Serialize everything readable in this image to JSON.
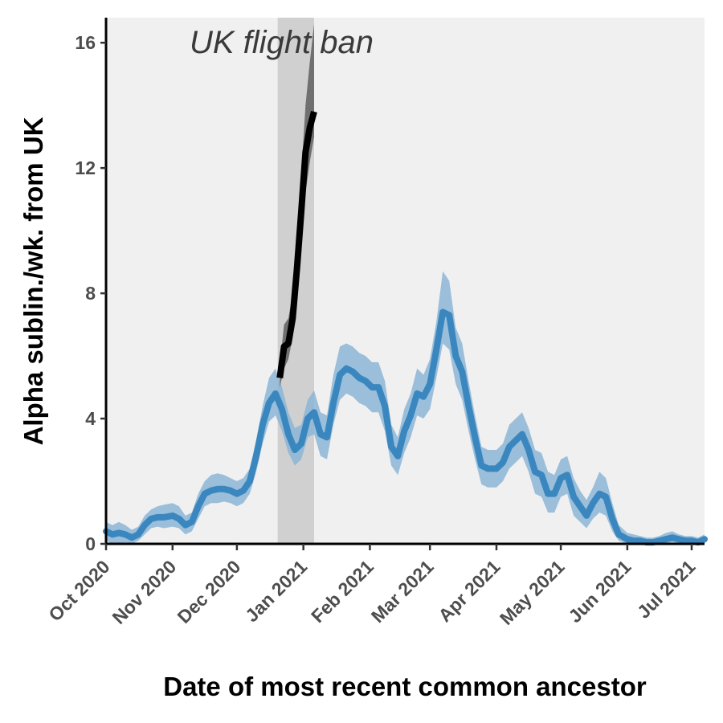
{
  "chart_data": {
    "type": "line",
    "title": "",
    "xlabel": "Date of most recent common ancestor",
    "ylabel": "Alpha sublin./wk. from UK",
    "x_start": "2020-10-01",
    "x_end": "2021-07-07",
    "ylim": [
      0,
      16.8
    ],
    "yticks": [
      0,
      4,
      8,
      12,
      16
    ],
    "ytick_labels": [
      "0",
      "4",
      "8",
      "12",
      "16"
    ],
    "xticks": [
      "2020-10-01",
      "2020-11-01",
      "2020-12-01",
      "2021-01-01",
      "2021-02-01",
      "2021-03-01",
      "2021-04-01",
      "2021-05-01",
      "2021-06-01",
      "2021-07-01"
    ],
    "xtick_labels": [
      "Oct 2020",
      "Nov 2020",
      "Dec 2020",
      "Jan 2021",
      "Feb 2021",
      "Mar 2021",
      "Apr 2021",
      "May 2021",
      "Jun 2021",
      "Jul 2021"
    ],
    "annotation": {
      "text": "UK flight ban",
      "x_start": "2020-12-20",
      "x_end": "2021-01-06"
    },
    "grid": false,
    "colors": {
      "panel": "#f0f0f0",
      "band": "#d0d0d0",
      "blue_line": "#3a87bf",
      "blue_ribbon": "#8cb5d6",
      "black_line": "#000000",
      "black_ribbon": "#6a6a6a"
    },
    "series": [
      {
        "color": "#3a87bf",
        "x": [
          "2020-10-01",
          "2020-10-04",
          "2020-10-07",
          "2020-10-10",
          "2020-10-13",
          "2020-10-16",
          "2020-10-19",
          "2020-10-22",
          "2020-10-25",
          "2020-10-28",
          "2020-11-01",
          "2020-11-04",
          "2020-11-07",
          "2020-11-10",
          "2020-11-13",
          "2020-11-16",
          "2020-11-19",
          "2020-11-22",
          "2020-11-25",
          "2020-11-28",
          "2020-12-01",
          "2020-12-04",
          "2020-12-07",
          "2020-12-10",
          "2020-12-13",
          "2020-12-16",
          "2020-12-19",
          "2020-12-22",
          "2020-12-25",
          "2020-12-28",
          "2020-12-31",
          "2021-01-03",
          "2021-01-06",
          "2021-01-09",
          "2021-01-12",
          "2021-01-15",
          "2021-01-18",
          "2021-01-21",
          "2021-01-24",
          "2021-01-27",
          "2021-01-30",
          "2021-02-02",
          "2021-02-05",
          "2021-02-08",
          "2021-02-11",
          "2021-02-14",
          "2021-02-17",
          "2021-02-20",
          "2021-02-23",
          "2021-02-26",
          "2021-03-01",
          "2021-03-04",
          "2021-03-07",
          "2021-03-10",
          "2021-03-13",
          "2021-03-16",
          "2021-03-19",
          "2021-03-22",
          "2021-03-25",
          "2021-03-28",
          "2021-04-01",
          "2021-04-04",
          "2021-04-07",
          "2021-04-10",
          "2021-04-13",
          "2021-04-16",
          "2021-04-19",
          "2021-04-22",
          "2021-04-25",
          "2021-04-28",
          "2021-05-01",
          "2021-05-04",
          "2021-05-07",
          "2021-05-10",
          "2021-05-13",
          "2021-05-16",
          "2021-05-19",
          "2021-05-22",
          "2021-05-25",
          "2021-05-28",
          "2021-06-01",
          "2021-06-04",
          "2021-06-07",
          "2021-06-10",
          "2021-06-13",
          "2021-06-16",
          "2021-06-19",
          "2021-06-22",
          "2021-06-25",
          "2021-06-28",
          "2021-07-01",
          "2021-07-04",
          "2021-07-07"
        ],
        "y": [
          0.4,
          0.3,
          0.35,
          0.3,
          0.2,
          0.3,
          0.6,
          0.8,
          0.85,
          0.85,
          0.9,
          0.8,
          0.6,
          0.7,
          1.2,
          1.6,
          1.7,
          1.75,
          1.75,
          1.7,
          1.6,
          1.7,
          2.0,
          2.8,
          3.8,
          4.5,
          4.8,
          4.3,
          3.5,
          3.0,
          3.2,
          4.0,
          4.2,
          3.5,
          3.4,
          4.5,
          5.4,
          5.6,
          5.5,
          5.3,
          5.2,
          5.0,
          5.0,
          4.4,
          3.1,
          2.8,
          3.6,
          4.1,
          4.8,
          4.7,
          5.1,
          6.2,
          7.4,
          7.3,
          6.0,
          5.5,
          4.4,
          3.4,
          2.5,
          2.4,
          2.4,
          2.6,
          3.1,
          3.3,
          3.5,
          3.0,
          2.3,
          2.2,
          1.6,
          1.6,
          2.1,
          2.2,
          1.5,
          1.2,
          0.9,
          1.3,
          1.6,
          1.5,
          0.8,
          0.3,
          0.15,
          0.1,
          0.1,
          0.05,
          0.05,
          0.1,
          0.15,
          0.2,
          0.15,
          0.1,
          0.1,
          0.05,
          0.15
        ],
        "lower": [
          0.1,
          0.0,
          0.0,
          0.05,
          0.0,
          0.1,
          0.3,
          0.5,
          0.55,
          0.5,
          0.55,
          0.5,
          0.3,
          0.4,
          0.8,
          1.2,
          1.3,
          1.3,
          1.35,
          1.3,
          1.2,
          1.3,
          1.6,
          2.3,
          3.2,
          3.9,
          4.1,
          3.6,
          2.9,
          2.5,
          2.7,
          3.4,
          3.5,
          2.8,
          2.7,
          3.8,
          4.6,
          4.8,
          4.7,
          4.5,
          4.4,
          4.2,
          4.2,
          3.6,
          2.5,
          2.2,
          2.9,
          3.4,
          4.1,
          4.0,
          4.3,
          5.3,
          6.4,
          6.2,
          5.1,
          4.6,
          3.6,
          2.7,
          1.9,
          1.8,
          1.8,
          2.0,
          2.4,
          2.6,
          2.8,
          2.3,
          1.6,
          1.5,
          1.0,
          1.0,
          1.5,
          1.6,
          0.9,
          0.7,
          0.5,
          0.8,
          1.0,
          0.9,
          0.4,
          0.1,
          0.0,
          0.0,
          0.0,
          0.0,
          0.0,
          0.0,
          0.02,
          0.05,
          0.02,
          0.0,
          0.0,
          0.0,
          0.02
        ],
        "upper": [
          0.7,
          0.6,
          0.7,
          0.6,
          0.45,
          0.55,
          0.9,
          1.1,
          1.2,
          1.25,
          1.3,
          1.2,
          0.9,
          1.0,
          1.6,
          2.0,
          2.2,
          2.25,
          2.2,
          2.1,
          2.0,
          2.1,
          2.4,
          3.3,
          4.4,
          5.3,
          5.6,
          5.0,
          4.2,
          3.7,
          3.8,
          4.6,
          4.9,
          4.2,
          4.1,
          5.4,
          6.3,
          6.4,
          6.3,
          6.1,
          6.0,
          5.8,
          5.8,
          5.2,
          3.8,
          3.4,
          4.3,
          4.8,
          5.6,
          5.4,
          5.9,
          7.1,
          8.7,
          8.4,
          6.9,
          6.4,
          5.2,
          4.1,
          3.1,
          3.0,
          3.0,
          3.2,
          3.8,
          4.0,
          4.2,
          3.7,
          3.0,
          2.9,
          2.3,
          2.2,
          2.7,
          2.8,
          2.1,
          1.7,
          1.4,
          1.8,
          2.3,
          2.1,
          1.3,
          0.6,
          0.35,
          0.3,
          0.25,
          0.2,
          0.2,
          0.25,
          0.35,
          0.4,
          0.3,
          0.25,
          0.25,
          0.2,
          0.3
        ]
      },
      {
        "color": "#000000",
        "x": [
          "2020-12-21",
          "2020-12-23",
          "2020-12-25",
          "2020-12-27",
          "2020-12-29",
          "2020-12-31",
          "2021-01-02",
          "2021-01-04",
          "2021-01-06"
        ],
        "y": [
          5.3,
          6.3,
          6.4,
          7.2,
          8.8,
          10.6,
          12.5,
          13.3,
          13.8
        ],
        "lower": [
          5.0,
          5.6,
          5.9,
          6.6,
          8.0,
          9.6,
          11.2,
          12.2,
          13.0
        ],
        "upper": [
          5.7,
          7.0,
          7.2,
          8.0,
          9.8,
          11.8,
          14.0,
          15.4,
          16.6
        ]
      }
    ]
  }
}
